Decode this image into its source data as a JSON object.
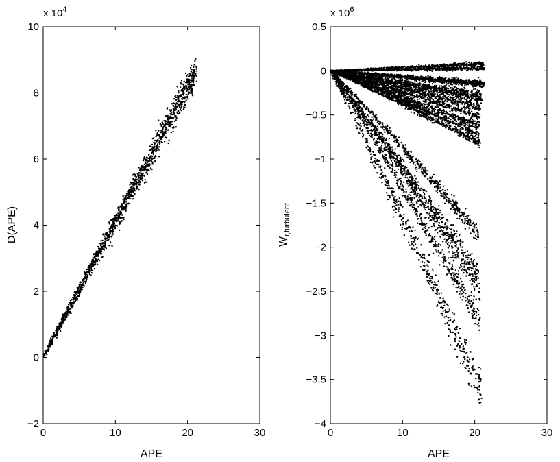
{
  "chart_data": [
    {
      "type": "scatter",
      "xlabel": "APE",
      "ylabel": "D(APE)",
      "exponent_base": "x 10",
      "exponent_power": "4",
      "xlim": [
        0,
        30
      ],
      "ylim": [
        -2,
        10
      ],
      "x_ticks": [
        "0",
        "10",
        "20",
        "30"
      ],
      "y_ticks": [
        "−2",
        "0",
        "2",
        "4",
        "6",
        "8",
        "10"
      ],
      "grid": false,
      "marker_color": "#000000",
      "series": [
        {
          "x_range": [
            0,
            21.3
          ],
          "y_start": 0,
          "y_end": 8.8,
          "spread": 0.18,
          "band": "slightly lower at high APE, ends 8.4–9.0"
        }
      ]
    },
    {
      "type": "scatter",
      "xlabel": "APE",
      "ylabel_main": "W",
      "ylabel_sub": "r,turbulent",
      "exponent_base": "x 10",
      "exponent_power": "6",
      "xlim": [
        0,
        30
      ],
      "ylim": [
        -4,
        0.5
      ],
      "x_ticks": [
        "0",
        "10",
        "20",
        "30"
      ],
      "y_ticks": [
        "−4",
        "−3.5",
        "−3",
        "−2.5",
        "−2",
        "−1.5",
        "−1",
        "−0.5",
        "0",
        "0.5"
      ],
      "grid": false,
      "marker_color": "#000000",
      "series": [
        {
          "x_end": 21.3,
          "y_end": 0.08,
          "spread": 0.01
        },
        {
          "x_end": 21.3,
          "y_end": 0.03,
          "spread": 0.01
        },
        {
          "x_end": 21.3,
          "y_end": -0.14,
          "spread": 0.015
        },
        {
          "x_end": 21.3,
          "y_end": -0.16,
          "spread": 0.015
        },
        {
          "x_end": 21.0,
          "y_end": -0.28,
          "spread": 0.02
        },
        {
          "x_end": 21.0,
          "y_end": -0.33,
          "spread": 0.02
        },
        {
          "x_end": 20.8,
          "y_end": -0.42,
          "spread": 0.02
        },
        {
          "x_end": 20.8,
          "y_end": -0.52,
          "spread": 0.02
        },
        {
          "x_end": 20.6,
          "y_end": -0.63,
          "spread": 0.02
        },
        {
          "x_end": 20.6,
          "y_end": -0.72,
          "spread": 0.02
        },
        {
          "x_end": 20.8,
          "y_end": -0.82,
          "spread": 0.02
        },
        {
          "x_end": 20.5,
          "y_end": -1.85,
          "spread": 0.04
        },
        {
          "x_end": 20.5,
          "y_end": -2.28,
          "spread": 0.05
        },
        {
          "x_end": 20.8,
          "y_end": -2.5,
          "spread": 0.05
        },
        {
          "x_end": 20.8,
          "y_end": -2.86,
          "spread": 0.06
        },
        {
          "x_end": 21.0,
          "y_end": -3.65,
          "spread": 0.1
        }
      ]
    }
  ]
}
